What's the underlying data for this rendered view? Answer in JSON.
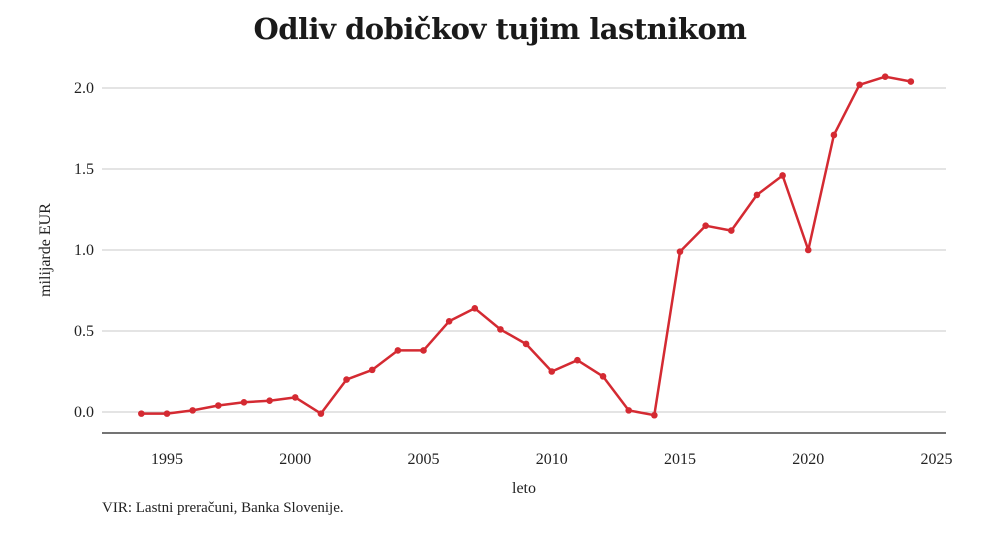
{
  "chart_data": {
    "type": "line",
    "title": "Odliv dobičkov tujim lastnikom",
    "xlabel": "leto",
    "ylabel": "milijarde EUR",
    "source": "VIR: Lastni preračuni, Banka Slovenije.",
    "xlim": [
      1992.5,
      2025.5
    ],
    "ylim": [
      -0.13,
      2.0
    ],
    "grid": true,
    "color": "#d42a32",
    "xticks": [
      1995,
      2000,
      2005,
      2010,
      2015,
      2020,
      2025
    ],
    "xtick_labels": [
      "1995",
      "2000",
      "2005",
      "2010",
      "2015",
      "2020",
      "2025"
    ],
    "yticks": [
      0.0,
      0.5,
      1.0,
      1.5,
      2.0
    ],
    "ytick_labels": [
      "0.0",
      "0.5",
      "1.0",
      "1.5",
      "2.0"
    ],
    "series": [
      {
        "name": "Odliv dobičkov",
        "x": [
          1994,
          1995,
          1996,
          1997,
          1998,
          1999,
          2000,
          2001,
          2002,
          2003,
          2004,
          2005,
          2006,
          2007,
          2008,
          2009,
          2010,
          2011,
          2012,
          2013,
          2014,
          2015,
          2016,
          2017,
          2018,
          2019,
          2020,
          2021,
          2022,
          2023,
          2024
        ],
        "values": [
          -0.01,
          -0.01,
          0.01,
          0.04,
          0.06,
          0.07,
          0.09,
          -0.01,
          0.2,
          0.26,
          0.38,
          0.38,
          0.56,
          0.64,
          0.51,
          0.42,
          0.25,
          0.32,
          0.22,
          0.01,
          -0.02,
          0.99,
          1.15,
          1.12,
          1.34,
          1.46,
          1.0,
          1.71,
          2.02,
          2.07,
          2.04
        ]
      }
    ]
  }
}
